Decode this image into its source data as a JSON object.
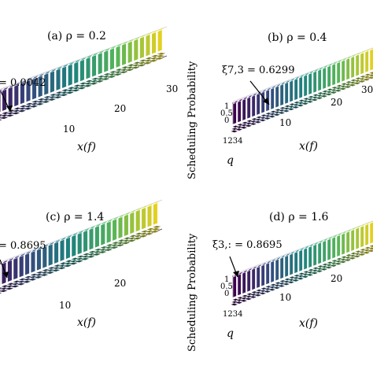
{
  "chart_data": [
    {
      "type": "bar3d",
      "title": "(a) ρ = 0.2",
      "xlabel": "x(f)",
      "ylabel": "",
      "qlabel": "",
      "xticks": [
        "10",
        "20",
        "30"
      ],
      "yticks": [],
      "qticks": [],
      "annotation": "= 0.0042",
      "bars": 30,
      "color_scale": "viridis"
    },
    {
      "type": "bar3d",
      "title": "(b) ρ = 0.4",
      "xlabel": "x(f)",
      "ylabel": "Scheduling Probability",
      "qlabel": "q",
      "xticks": [
        "10",
        "20",
        "30"
      ],
      "yticks": [
        "1",
        "0.5",
        "0"
      ],
      "qticks": [
        "1",
        "2",
        "3",
        "4"
      ],
      "annotation": "ξ7,3 = 0.6299",
      "bars": 30,
      "color_scale": "viridis"
    },
    {
      "type": "bar3d",
      "title": "(c) ρ = 1.4",
      "xlabel": "x(f)",
      "ylabel": "",
      "qlabel": "",
      "xticks": [
        "10",
        "20"
      ],
      "yticks": [],
      "qticks": [],
      "annotation": "= 0.8695",
      "bars": 30,
      "color_scale": "viridis"
    },
    {
      "type": "bar3d",
      "title": "(d) ρ = 1.6",
      "xlabel": "x(f)",
      "ylabel": "Scheduling Probability",
      "qlabel": "q",
      "xticks": [
        "10",
        "20"
      ],
      "yticks": [
        "1",
        "0.5",
        "0"
      ],
      "qticks": [
        "1",
        "2",
        "3",
        "4"
      ],
      "annotation": "ξ3,: = 0.8695",
      "bars": 30,
      "color_scale": "viridis"
    }
  ]
}
